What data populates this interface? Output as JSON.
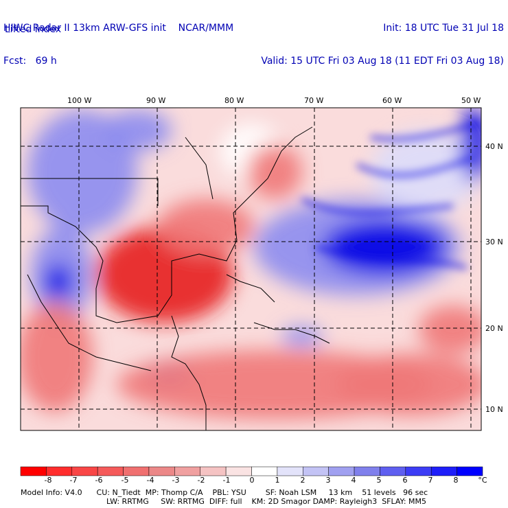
{
  "header": {
    "model_title": "HIWC Radar II 13km ARW-GFS init",
    "org": "NCAR/MMM",
    "init": "Init: 18 UTC Tue 31 Jul 18",
    "fcst_label": "Fcst:",
    "fcst_value": "69 h",
    "valid": "Valid: 15 UTC Fri 03 Aug 18 (11 EDT Fri 03 Aug 18)",
    "variable": "Lifted index"
  },
  "map": {
    "lon_labels": [
      "100 W",
      "90 W",
      "80 W",
      "70 W",
      "60 W",
      "50 W"
    ],
    "lat_labels": [
      "40 N",
      "30 N",
      "20 N",
      "10 N"
    ],
    "colors": {
      "strong_pos": "#0000e6",
      "pos": "#8c8cf0",
      "weak_pos": "#dcdcfa",
      "neutral": "#ffffff",
      "weak_neg": "#fadcdc",
      "neg": "#f07878",
      "strong_neg": "#e61e1e",
      "coast": "#000000",
      "grid": "#000000"
    }
  },
  "colorbar": {
    "ticks": [
      "-8",
      "-7",
      "-6",
      "-5",
      "-4",
      "-3",
      "-2",
      "-1",
      "0",
      "1",
      "2",
      "3",
      "4",
      "5",
      "6",
      "7",
      "8"
    ],
    "unit": "°C",
    "colors": [
      "#ff0000",
      "#ff2d2d",
      "#f94646",
      "#f55a5a",
      "#f07070",
      "#ec8888",
      "#f0a0a0",
      "#f5c3c3",
      "#fae3e3",
      "#ffffff",
      "#e3e3fa",
      "#c3c3f5",
      "#a0a0f0",
      "#8080ec",
      "#5f5ff0",
      "#3c3cf5",
      "#1e1ef9",
      "#0000ff"
    ]
  },
  "footer": {
    "line1": "Model Info: V4.0      CU: N_Tiedt  MP: Thomp C/A    PBL: YSU        SF: Noah LSM     13 km    51 levels   96 sec",
    "line2": "LW: RRTMG     SW: RRTMG  DIFF: full    KM: 2D Smagor DAMP: Rayleigh3  SFLAY: MM5"
  }
}
